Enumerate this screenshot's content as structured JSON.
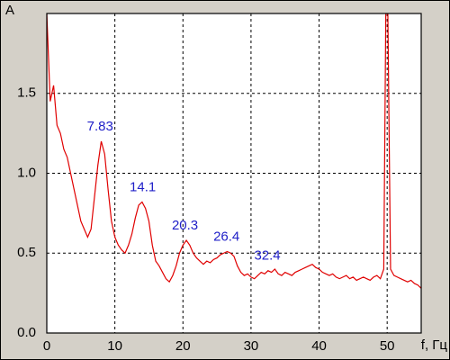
{
  "chart_data": {
    "type": "line",
    "ylabel": "A",
    "xlabel": "f, Гц",
    "x": [
      0,
      0.5,
      1,
      1.5,
      2,
      2.5,
      3,
      3.5,
      4,
      4.5,
      5,
      5.5,
      6,
      6.5,
      7,
      7.5,
      8,
      8.5,
      9,
      9.5,
      10,
      10.5,
      11,
      11.5,
      12,
      12.5,
      13,
      13.5,
      14,
      14.5,
      15,
      15.5,
      16,
      16.5,
      17,
      17.5,
      18,
      18.5,
      19,
      19.5,
      20,
      20.5,
      21,
      21.5,
      22,
      22.5,
      23,
      23.5,
      24,
      24.5,
      25,
      25.5,
      26,
      26.5,
      27,
      27.5,
      28,
      28.5,
      29,
      29.5,
      30,
      30.5,
      31,
      31.5,
      32,
      32.5,
      33,
      33.5,
      34,
      34.5,
      35,
      35.5,
      36,
      36.5,
      37,
      37.5,
      38,
      38.5,
      39,
      39.5,
      40,
      40.5,
      41,
      41.5,
      42,
      42.5,
      43,
      43.5,
      44,
      44.5,
      45,
      45.5,
      46,
      46.5,
      47,
      47.5,
      48,
      48.5,
      49,
      49.5,
      49.8,
      50.1,
      50.5,
      51,
      51.5,
      52,
      52.5,
      53,
      53.5,
      54,
      54.5,
      55
    ],
    "series": [
      {
        "color": "#e00000",
        "values": [
          2.0,
          1.45,
          1.55,
          1.3,
          1.25,
          1.15,
          1.1,
          1.0,
          0.9,
          0.8,
          0.7,
          0.65,
          0.6,
          0.65,
          0.85,
          1.05,
          1.2,
          1.12,
          0.9,
          0.7,
          0.6,
          0.55,
          0.52,
          0.5,
          0.55,
          0.62,
          0.72,
          0.8,
          0.82,
          0.78,
          0.7,
          0.55,
          0.45,
          0.42,
          0.38,
          0.34,
          0.32,
          0.36,
          0.42,
          0.5,
          0.55,
          0.58,
          0.55,
          0.5,
          0.47,
          0.45,
          0.43,
          0.45,
          0.44,
          0.46,
          0.47,
          0.49,
          0.5,
          0.51,
          0.5,
          0.48,
          0.42,
          0.38,
          0.36,
          0.37,
          0.35,
          0.34,
          0.36,
          0.38,
          0.37,
          0.39,
          0.38,
          0.4,
          0.37,
          0.36,
          0.38,
          0.37,
          0.36,
          0.38,
          0.39,
          0.4,
          0.41,
          0.42,
          0.43,
          0.41,
          0.4,
          0.38,
          0.37,
          0.36,
          0.37,
          0.35,
          0.34,
          0.35,
          0.36,
          0.34,
          0.35,
          0.33,
          0.34,
          0.35,
          0.34,
          0.33,
          0.35,
          0.36,
          0.34,
          0.4,
          2.0,
          2.0,
          0.4,
          0.36,
          0.35,
          0.34,
          0.33,
          0.32,
          0.33,
          0.31,
          0.3,
          0.28
        ]
      }
    ],
    "annotations": [
      {
        "x": 7.83,
        "label": "7.83"
      },
      {
        "x": 14.1,
        "label": "14.1"
      },
      {
        "x": 20.3,
        "label": "20.3"
      },
      {
        "x": 26.4,
        "label": "26.4"
      },
      {
        "x": 32.4,
        "label": "32.4"
      }
    ],
    "xlim": [
      0,
      55
    ],
    "xticks": [
      0,
      10,
      20,
      30,
      40,
      50
    ],
    "ylim": [
      0,
      2.0
    ],
    "yticks": [
      {
        "value": 0,
        "label": "0.0"
      },
      {
        "value": 0.5,
        "label": "0.5"
      },
      {
        "value": 1.0,
        "label": "1.0"
      },
      {
        "value": 1.5,
        "label": "1.5"
      }
    ],
    "grid": true,
    "annotation_color": "#2020c8"
  }
}
